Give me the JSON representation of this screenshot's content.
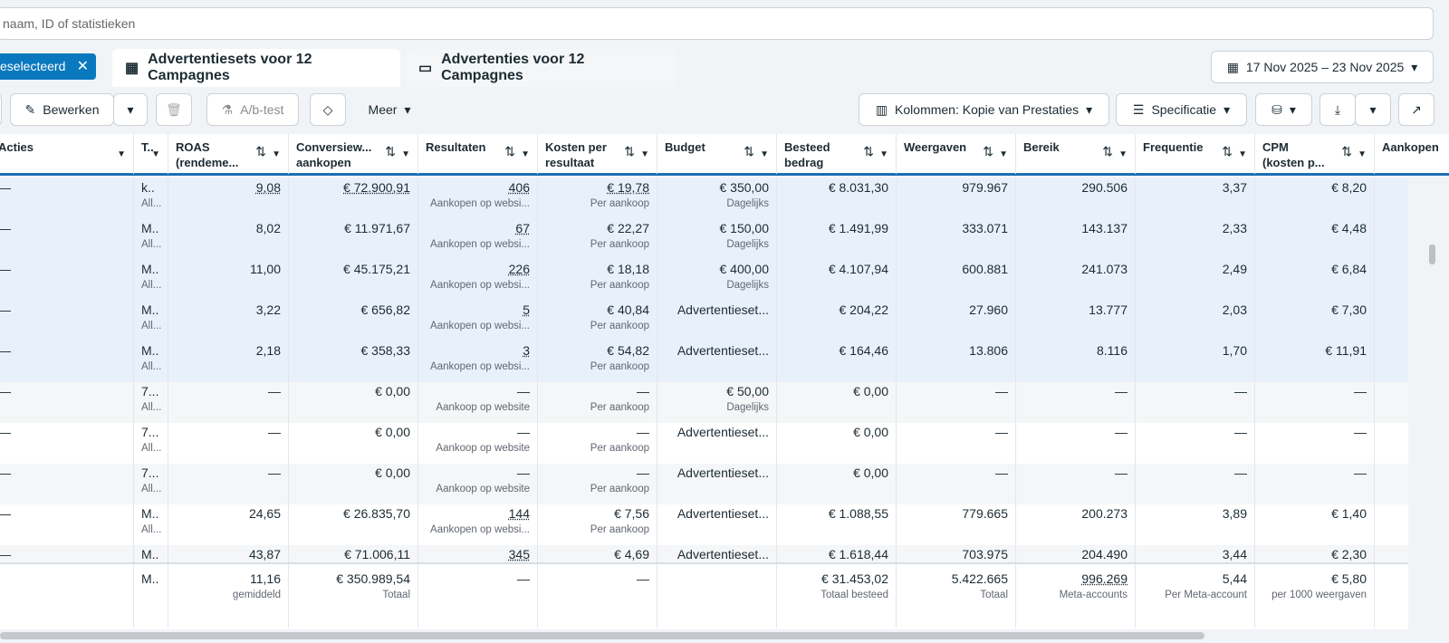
{
  "search": {
    "placeholder": "naam, ID of statistieken"
  },
  "chip": {
    "label": "eselecteerd"
  },
  "tabs": [
    {
      "label": "Advertentiesets voor 12 Campagnes"
    },
    {
      "label": "Advertenties voor 12 Campagnes"
    }
  ],
  "date_range": "17 Nov 2025 – 23 Nov 2025",
  "toolbar": {
    "edit": "Bewerken",
    "abtest": "A/b-test",
    "more": "Meer",
    "columns": "Kolommen: Kopie van Prestaties",
    "breakdown": "Specificatie"
  },
  "headers": [
    {
      "l1": "Acties",
      "l2": ""
    },
    {
      "l1": "T..",
      "l2": ""
    },
    {
      "l1": "ROAS",
      "l2": "(rendeme..."
    },
    {
      "l1": "Conversiew...",
      "l2": "aankopen"
    },
    {
      "l1": "Resultaten",
      "l2": ""
    },
    {
      "l1": "Kosten per",
      "l2": "resultaat"
    },
    {
      "l1": "Budget",
      "l2": ""
    },
    {
      "l1": "Besteed",
      "l2": "bedrag"
    },
    {
      "l1": "Weergaven",
      "l2": ""
    },
    {
      "l1": "Bereik",
      "l2": ""
    },
    {
      "l1": "Frequentie",
      "l2": ""
    },
    {
      "l1": "CPM",
      "l2": "(kosten p..."
    },
    {
      "l1": "Aankopen",
      "l2": ""
    }
  ],
  "rows": [
    {
      "a": "—",
      "t": "k..",
      "t2": "All...",
      "roas": "9,08",
      "conv": "€ 72.900,91",
      "res": "406",
      "res2": "Aankopen op websi...",
      "kpr": "€ 19,78",
      "kpr2": "Per aankoop",
      "bud": "€ 350,00",
      "bud2": "Dagelijks",
      "spend": "€ 8.031,30",
      "imp": "979.967",
      "reach": "290.506",
      "freq": "3,37",
      "cpm": "€ 8,20",
      "sel": true
    },
    {
      "a": "—",
      "t": "M..",
      "t2": "All...",
      "roas": "8,02",
      "conv": "€ 11.971,67",
      "res": "67",
      "res2": "Aankopen op websi...",
      "kpr": "€ 22,27",
      "kpr2": "Per aankoop",
      "bud": "€ 150,00",
      "bud2": "Dagelijks",
      "spend": "€ 1.491,99",
      "imp": "333.071",
      "reach": "143.137",
      "freq": "2,33",
      "cpm": "€ 4,48",
      "sel": true
    },
    {
      "a": "—",
      "t": "M..",
      "t2": "All...",
      "roas": "11,00",
      "conv": "€ 45.175,21",
      "res": "226",
      "res2": "Aankopen op websi...",
      "kpr": "€ 18,18",
      "kpr2": "Per aankoop",
      "bud": "€ 400,00",
      "bud2": "Dagelijks",
      "spend": "€ 4.107,94",
      "imp": "600.881",
      "reach": "241.073",
      "freq": "2,49",
      "cpm": "€ 6,84",
      "sel": true
    },
    {
      "a": "—",
      "t": "M..",
      "t2": "All...",
      "roas": "3,22",
      "conv": "€ 656,82",
      "res": "5",
      "res2": "Aankopen op websi...",
      "kpr": "€ 40,84",
      "kpr2": "Per aankoop",
      "bud": "Advertentieset...",
      "bud2": "",
      "spend": "€ 204,22",
      "imp": "27.960",
      "reach": "13.777",
      "freq": "2,03",
      "cpm": "€ 7,30",
      "sel": true
    },
    {
      "a": "—",
      "t": "M..",
      "t2": "All...",
      "roas": "2,18",
      "conv": "€ 358,33",
      "res": "3",
      "res2": "Aankopen op websi...",
      "kpr": "€ 54,82",
      "kpr2": "Per aankoop",
      "bud": "Advertentieset...",
      "bud2": "",
      "spend": "€ 164,46",
      "imp": "13.806",
      "reach": "8.116",
      "freq": "1,70",
      "cpm": "€ 11,91",
      "sel": true
    },
    {
      "a": "—",
      "t": "7...",
      "t2": "All...",
      "roas": "—",
      "conv": "€ 0,00",
      "res": "—",
      "res2": "Aankoop op website",
      "kpr": "—",
      "kpr2": "Per aankoop",
      "bud": "€ 50,00",
      "bud2": "Dagelijks",
      "spend": "€ 0,00",
      "imp": "—",
      "reach": "—",
      "freq": "—",
      "cpm": "—",
      "sel": false
    },
    {
      "a": "—",
      "t": "7...",
      "t2": "All...",
      "roas": "—",
      "conv": "€ 0,00",
      "res": "—",
      "res2": "Aankoop op website",
      "kpr": "—",
      "kpr2": "Per aankoop",
      "bud": "Advertentieset...",
      "bud2": "",
      "spend": "€ 0,00",
      "imp": "—",
      "reach": "—",
      "freq": "—",
      "cpm": "—",
      "sel": false
    },
    {
      "a": "—",
      "t": "7...",
      "t2": "All...",
      "roas": "—",
      "conv": "€ 0,00",
      "res": "—",
      "res2": "Aankoop op website",
      "kpr": "—",
      "kpr2": "Per aankoop",
      "bud": "Advertentieset...",
      "bud2": "",
      "spend": "€ 0,00",
      "imp": "—",
      "reach": "—",
      "freq": "—",
      "cpm": "—",
      "sel": false
    },
    {
      "a": "—",
      "t": "M..",
      "t2": "All...",
      "roas": "24,65",
      "conv": "€ 26.835,70",
      "res": "144",
      "res2": "Aankopen op websi...",
      "kpr": "€ 7,56",
      "kpr2": "Per aankoop",
      "bud": "Advertentieset...",
      "bud2": "",
      "spend": "€ 1.088,55",
      "imp": "779.665",
      "reach": "200.273",
      "freq": "3,89",
      "cpm": "€ 1,40",
      "sel": false
    },
    {
      "a": "—",
      "t": "M..",
      "t2": "",
      "roas": "43,87",
      "conv": "€ 71.006,11",
      "res": "345",
      "res2": "",
      "kpr": "€ 4,69",
      "kpr2": "",
      "bud": "Advertentieset...",
      "bud2": "",
      "spend": "€ 1.618,44",
      "imp": "703.975",
      "reach": "204.490",
      "freq": "3,44",
      "cpm": "€ 2,30",
      "sel": false
    }
  ],
  "summary": {
    "t": "M..",
    "roas": "11,16",
    "roas2": "gemiddeld",
    "conv": "€ 350.989,54",
    "conv2": "Totaal",
    "res": "—",
    "kpr": "—",
    "spend": "€ 31.453,02",
    "spend2": "Totaal besteed",
    "imp": "5.422.665",
    "imp2": "Totaal",
    "reach": "996.269",
    "reach2": "Meta-accounts",
    "freq": "5,44",
    "freq2": "Per Meta-account",
    "cpm": "€ 5,80",
    "cpm2": "per 1000 weergaven"
  }
}
